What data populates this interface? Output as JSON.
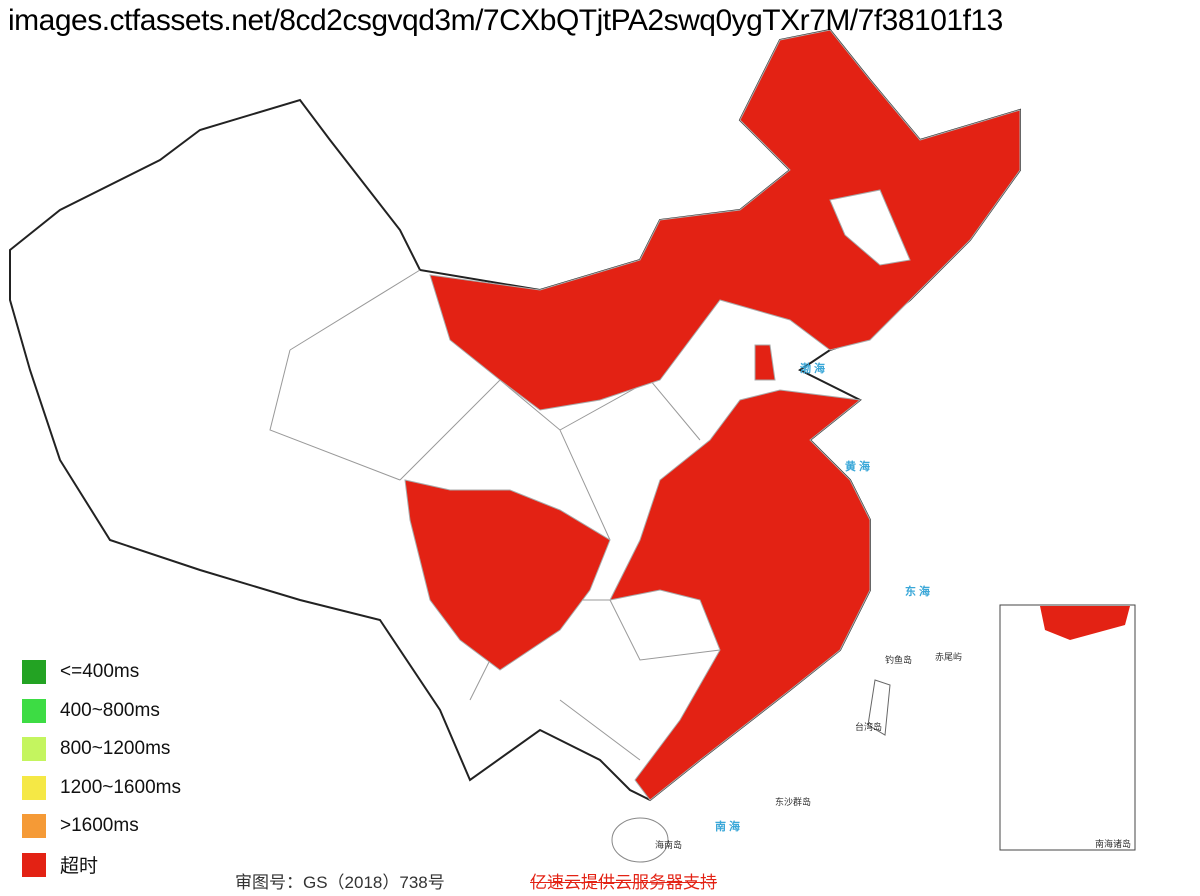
{
  "header": {
    "url": "images.ctfassets.net/8cd2csgvqd3m/7CXbQTjtPA2swq0ygTXr7M/7f38101f13"
  },
  "legend": {
    "items": [
      {
        "label": "<=400ms",
        "color": "#23a323"
      },
      {
        "label": "400~800ms",
        "color": "#3ddc44"
      },
      {
        "label": "800~1200ms",
        "color": "#c4f55f"
      },
      {
        "label": "1200~1600ms",
        "color": "#f5e845"
      },
      {
        "label": ">1600ms",
        "color": "#f59a36"
      },
      {
        "label": "超时",
        "color": "#e32214"
      }
    ]
  },
  "map": {
    "timeout_color": "#e32214",
    "labels": {
      "taiwan": "台湾岛",
      "hainan": "海南岛",
      "dongsha": "东沙群岛",
      "diaoyu": "钓鱼岛",
      "chiwei": "赤尾屿",
      "nanhai_zhudao": "南海诸岛"
    }
  },
  "footer": {
    "review_number": "审图号：GS（2018）738号",
    "sponsor": "亿速云提供云服务器支持"
  }
}
